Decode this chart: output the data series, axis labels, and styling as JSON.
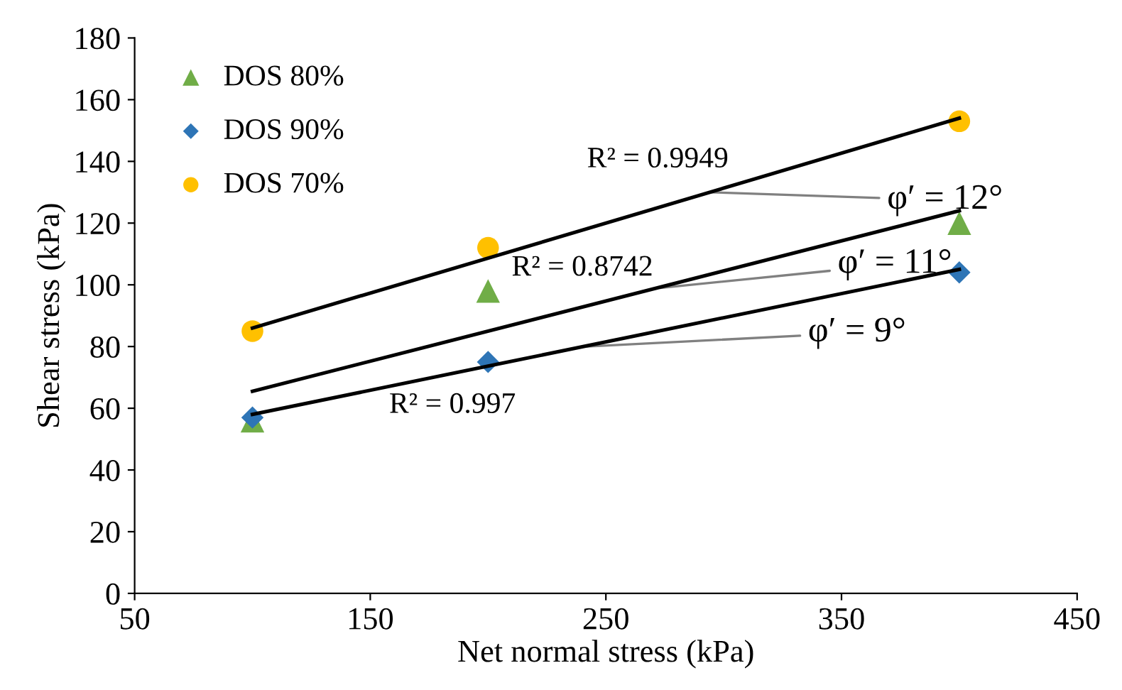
{
  "chart_data": {
    "type": "scatter",
    "xlabel": "Net normal stress (kPa)",
    "ylabel": "Shear stress (kPa)",
    "xlim": [
      50,
      450
    ],
    "xticks": [
      50,
      150,
      250,
      350,
      450
    ],
    "ylim": [
      0,
      180
    ],
    "yticks": [
      0,
      20,
      40,
      60,
      80,
      100,
      120,
      140,
      160,
      180
    ],
    "grid": false,
    "legend": "top left",
    "series": [
      {
        "name": "DOS 80%",
        "marker": "triangle",
        "color": "#70ad47",
        "x": [
          100,
          200,
          400
        ],
        "values": [
          56,
          98,
          120
        ]
      },
      {
        "name": "DOS 90%",
        "marker": "diamond",
        "color": "#2e75b6",
        "x": [
          100,
          200,
          400
        ],
        "values": [
          57,
          75,
          104
        ]
      },
      {
        "name": "DOS 70%",
        "marker": "circle",
        "color": "#ffc000",
        "x": [
          100,
          200,
          400
        ],
        "values": [
          85,
          112,
          153
        ]
      },
      {
        "type": "line",
        "marker": "none",
        "line_style": "solid",
        "color": "#000000",
        "x": [
          100,
          400
        ],
        "values": [
          86,
          154
        ]
      },
      {
        "type": "line",
        "marker": "none",
        "line_style": "solid",
        "color": "#000000",
        "x": [
          100,
          400
        ],
        "values": [
          65.5,
          124
        ]
      },
      {
        "type": "line",
        "marker": "none",
        "line_style": "solid",
        "color": "#000000",
        "x": [
          100,
          400
        ],
        "values": [
          58,
          105
        ]
      }
    ],
    "annotations": [
      "R² = 0.9949",
      "R² = 0.8742",
      "R² = 0.997",
      {
        "text": "φ′ = 12°",
        "x": 294,
        "y": 130
      },
      {
        "text": "φ′ = 11°",
        "x": 273,
        "y": 99
      },
      {
        "text": "φ′ = 9°",
        "x": 242,
        "y": 80
      }
    ]
  }
}
